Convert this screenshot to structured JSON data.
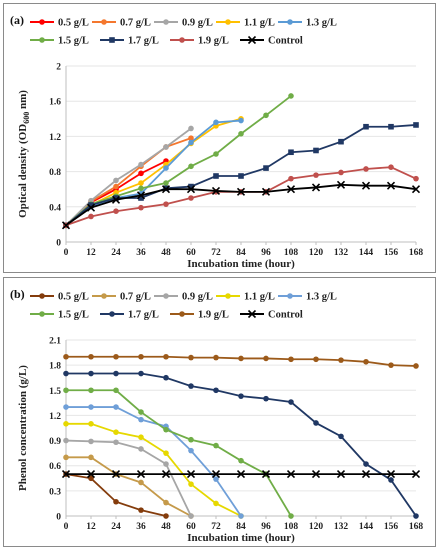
{
  "chart_data": [
    {
      "type": "line",
      "panel_label": "(a)",
      "xlabel": "Incubation time (hour)",
      "ylabel": "Optical density (OD600 nm)",
      "ylabel_main": "Optical density (OD",
      "ylabel_sub": "600",
      "ylabel_tail": " nm)",
      "xlim": [
        0,
        168
      ],
      "ylim": [
        0,
        2.0
      ],
      "xticks": [
        "0",
        "12",
        "24",
        "36",
        "48",
        "60",
        "72",
        "84",
        "96",
        "108",
        "120",
        "132",
        "144",
        "156",
        "168"
      ],
      "yticks": [
        "0",
        "0.4",
        "0.8",
        "1.2",
        "1.6",
        "2"
      ],
      "grid": "horizontal",
      "legend": "top",
      "series": [
        {
          "name": "0.5 g/L",
          "color": "#ff0000",
          "marker": "circle",
          "x": [
            0,
            12,
            24,
            36,
            48
          ],
          "y": [
            0.19,
            0.45,
            0.6,
            0.78,
            0.92
          ]
        },
        {
          "name": "0.7 g/L",
          "color": "#f4772e",
          "marker": "circle",
          "x": [
            0,
            12,
            24,
            36,
            48,
            60
          ],
          "y": [
            0.19,
            0.46,
            0.63,
            0.86,
            1.08,
            1.18
          ]
        },
        {
          "name": "0.9 g/L",
          "color": "#a6a6a6",
          "marker": "circle",
          "x": [
            0,
            12,
            24,
            36,
            48,
            60
          ],
          "y": [
            0.19,
            0.47,
            0.7,
            0.88,
            1.08,
            1.29
          ]
        },
        {
          "name": "1.1 g/L",
          "color": "#ffc000",
          "marker": "circle",
          "x": [
            0,
            12,
            24,
            36,
            48,
            60,
            72,
            84
          ],
          "y": [
            0.19,
            0.42,
            0.56,
            0.67,
            0.88,
            1.12,
            1.32,
            1.4
          ]
        },
        {
          "name": "1.3 g/L",
          "color": "#5b9bd5",
          "marker": "circle",
          "x": [
            0,
            12,
            24,
            36,
            48,
            60,
            72,
            84
          ],
          "y": [
            0.19,
            0.4,
            0.5,
            0.55,
            0.84,
            1.13,
            1.36,
            1.38
          ]
        },
        {
          "name": "1.5 g/L",
          "color": "#70ad47",
          "marker": "circle",
          "x": [
            0,
            12,
            24,
            36,
            48,
            60,
            72,
            84,
            96,
            108
          ],
          "y": [
            0.19,
            0.43,
            0.52,
            0.61,
            0.67,
            0.86,
            1.0,
            1.23,
            1.44,
            1.66
          ]
        },
        {
          "name": "1.7 g/L",
          "color": "#203864",
          "marker": "square",
          "x": [
            0,
            12,
            24,
            36,
            48,
            60,
            72,
            84,
            96,
            108,
            120,
            132,
            144,
            156,
            168
          ],
          "y": [
            0.19,
            0.42,
            0.5,
            0.5,
            0.61,
            0.63,
            0.75,
            0.75,
            0.84,
            1.02,
            1.04,
            1.14,
            1.31,
            1.31,
            1.33
          ]
        },
        {
          "name": "1.9 g/L",
          "color": "#c0504d",
          "marker": "circle",
          "x": [
            0,
            12,
            24,
            36,
            48,
            60,
            72,
            84,
            96,
            108,
            120,
            132,
            144,
            156,
            168
          ],
          "y": [
            0.19,
            0.29,
            0.35,
            0.39,
            0.43,
            0.5,
            0.57,
            0.57,
            0.57,
            0.72,
            0.76,
            0.79,
            0.83,
            0.85,
            0.72
          ]
        },
        {
          "name": "Control",
          "color": "#000000",
          "marker": "x",
          "x": [
            0,
            12,
            24,
            36,
            48,
            60,
            72,
            84,
            96,
            108,
            120,
            132,
            144,
            156,
            168
          ],
          "y": [
            0.19,
            0.39,
            0.48,
            0.53,
            0.6,
            0.6,
            0.58,
            0.57,
            0.57,
            0.6,
            0.62,
            0.65,
            0.64,
            0.64,
            0.6
          ]
        }
      ]
    },
    {
      "type": "line",
      "panel_label": "(b)",
      "xlabel": "Incubation time (hour)",
      "ylabel": "Phenol concentration (g/L)",
      "xlim": [
        0,
        168
      ],
      "ylim": [
        0,
        2.1
      ],
      "xticks": [
        "0",
        "12",
        "24",
        "36",
        "48",
        "60",
        "72",
        "84",
        "96",
        "108",
        "120",
        "132",
        "144",
        "156",
        "168"
      ],
      "yticks": [
        "0",
        "0.3",
        "0.6",
        "0.9",
        "1.2",
        "1.5",
        "1.8",
        "2.1"
      ],
      "grid": "horizontal",
      "legend": "top",
      "series": [
        {
          "name": "0.5 g/L",
          "color": "#843c0c",
          "marker": "circle",
          "x": [
            0,
            12,
            24,
            36,
            48
          ],
          "y": [
            0.5,
            0.45,
            0.17,
            0.07,
            0.0
          ]
        },
        {
          "name": "0.7 g/L",
          "color": "#c59a4a",
          "marker": "circle",
          "x": [
            0,
            12,
            24,
            36,
            48,
            60
          ],
          "y": [
            0.7,
            0.7,
            0.5,
            0.4,
            0.16,
            0.0
          ]
        },
        {
          "name": "0.9 g/L",
          "color": "#a6a6a6",
          "marker": "circle",
          "x": [
            0,
            12,
            24,
            36,
            48,
            60
          ],
          "y": [
            0.9,
            0.89,
            0.88,
            0.8,
            0.62,
            0.0
          ]
        },
        {
          "name": "1.1 g/L",
          "color": "#e6d800",
          "marker": "circle",
          "x": [
            0,
            12,
            24,
            36,
            48,
            60,
            72,
            84
          ],
          "y": [
            1.1,
            1.1,
            1.0,
            0.94,
            0.75,
            0.38,
            0.15,
            0.0
          ]
        },
        {
          "name": "1.3 g/L",
          "color": "#6f9fd8",
          "marker": "circle",
          "x": [
            0,
            12,
            24,
            36,
            48,
            60,
            72,
            84
          ],
          "y": [
            1.3,
            1.3,
            1.3,
            1.15,
            1.07,
            0.78,
            0.44,
            0.0
          ]
        },
        {
          "name": "1.5 g/L",
          "color": "#70ad47",
          "marker": "circle",
          "x": [
            0,
            12,
            24,
            36,
            48,
            60,
            72,
            84,
            96,
            108
          ],
          "y": [
            1.5,
            1.5,
            1.5,
            1.24,
            1.03,
            0.91,
            0.84,
            0.66,
            0.5,
            0.0
          ]
        },
        {
          "name": "1.7 g/L",
          "color": "#203864",
          "marker": "circle",
          "x": [
            0,
            12,
            24,
            36,
            48,
            60,
            72,
            84,
            96,
            108,
            120,
            132,
            144,
            156,
            168
          ],
          "y": [
            1.7,
            1.7,
            1.7,
            1.7,
            1.65,
            1.55,
            1.5,
            1.43,
            1.4,
            1.36,
            1.11,
            0.95,
            0.62,
            0.43,
            0.0
          ]
        },
        {
          "name": "1.9 g/L",
          "color": "#9c5a1a",
          "marker": "circle",
          "x": [
            0,
            12,
            24,
            36,
            48,
            60,
            72,
            84,
            96,
            108,
            120,
            132,
            144,
            156,
            168
          ],
          "y": [
            1.9,
            1.9,
            1.9,
            1.9,
            1.9,
            1.89,
            1.89,
            1.88,
            1.88,
            1.87,
            1.87,
            1.86,
            1.84,
            1.8,
            1.79
          ]
        },
        {
          "name": "Control",
          "color": "#000000",
          "marker": "x",
          "x": [
            0,
            12,
            24,
            36,
            48,
            60,
            72,
            84,
            96,
            108,
            120,
            132,
            144,
            156,
            168
          ],
          "y": [
            0.5,
            0.5,
            0.5,
            0.5,
            0.5,
            0.5,
            0.5,
            0.5,
            0.5,
            0.5,
            0.5,
            0.5,
            0.5,
            0.5,
            0.5
          ]
        }
      ]
    }
  ]
}
